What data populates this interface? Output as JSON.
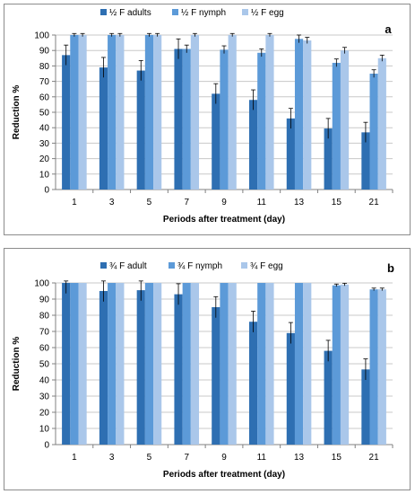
{
  "colors": {
    "adult": "#2e6fb2",
    "nymph": "#5c9ad8",
    "egg": "#aac7ea",
    "grid": "#c8c8c8",
    "error_bar": "#000000"
  },
  "chart_data": [
    {
      "type": "bar",
      "panel_label": "a",
      "categories": [
        "1",
        "3",
        "5",
        "7",
        "9",
        "11",
        "13",
        "15",
        "21"
      ],
      "xlabel": "Periods after treatment (day)",
      "ylabel": "Reduction %",
      "ylim": [
        0,
        100
      ],
      "yticks": [
        0,
        10,
        20,
        30,
        40,
        50,
        60,
        70,
        80,
        90,
        100
      ],
      "grid": true,
      "legend_position": "top",
      "series": [
        {
          "name": "½ F adults",
          "color_key": "adult",
          "values": [
            87,
            79,
            77,
            91,
            62,
            58,
            46,
            39.5,
            37
          ],
          "errors": [
            6.5,
            6.5,
            6.5,
            6.5,
            6.5,
            6.5,
            6.5,
            6.5,
            6.5
          ]
        },
        {
          "name": "½ F  nymph",
          "color_key": "nymph",
          "values": [
            100,
            100,
            100,
            91,
            90.5,
            88.5,
            97.5,
            82,
            75
          ],
          "errors": [
            1,
            1,
            1,
            2.5,
            2.5,
            2.5,
            2.5,
            2.5,
            2.5
          ]
        },
        {
          "name": "½ F egg",
          "color_key": "egg",
          "values": [
            100,
            100,
            100,
            100,
            100,
            100,
            96.5,
            90,
            85
          ],
          "errors": [
            1,
            1,
            1,
            1,
            1,
            1,
            2,
            2,
            2
          ]
        }
      ]
    },
    {
      "type": "bar",
      "panel_label": "b",
      "categories": [
        "1",
        "3",
        "5",
        "7",
        "9",
        "11",
        "13",
        "15",
        "21"
      ],
      "xlabel": "Periods after treatment (day)",
      "ylabel": "Reduction %",
      "ylim": [
        0,
        100
      ],
      "yticks": [
        0,
        10,
        20,
        30,
        40,
        50,
        60,
        70,
        80,
        90,
        100
      ],
      "grid": true,
      "legend_position": "top",
      "series": [
        {
          "name": "¾ F adult",
          "color_key": "adult",
          "values": [
            100,
            95,
            95.5,
            93,
            85,
            76,
            69,
            58,
            46.5
          ],
          "errors": [
            6.5,
            6.5,
            6.5,
            6.5,
            6.5,
            6.5,
            6.5,
            6.5,
            6.5
          ]
        },
        {
          "name": "¾ F nymph",
          "color_key": "nymph",
          "values": [
            100,
            100,
            100,
            100,
            100,
            100,
            100,
            98.5,
            96
          ],
          "errors": [
            0,
            0,
            0,
            0,
            0,
            0,
            0,
            0.8,
            0.8
          ]
        },
        {
          "name": "¾ F egg",
          "color_key": "egg",
          "values": [
            100,
            100,
            100,
            100,
            100,
            100,
            100,
            99,
            96
          ],
          "errors": [
            0,
            0,
            0,
            0,
            0,
            0,
            0,
            0.8,
            0.8
          ]
        }
      ]
    }
  ]
}
